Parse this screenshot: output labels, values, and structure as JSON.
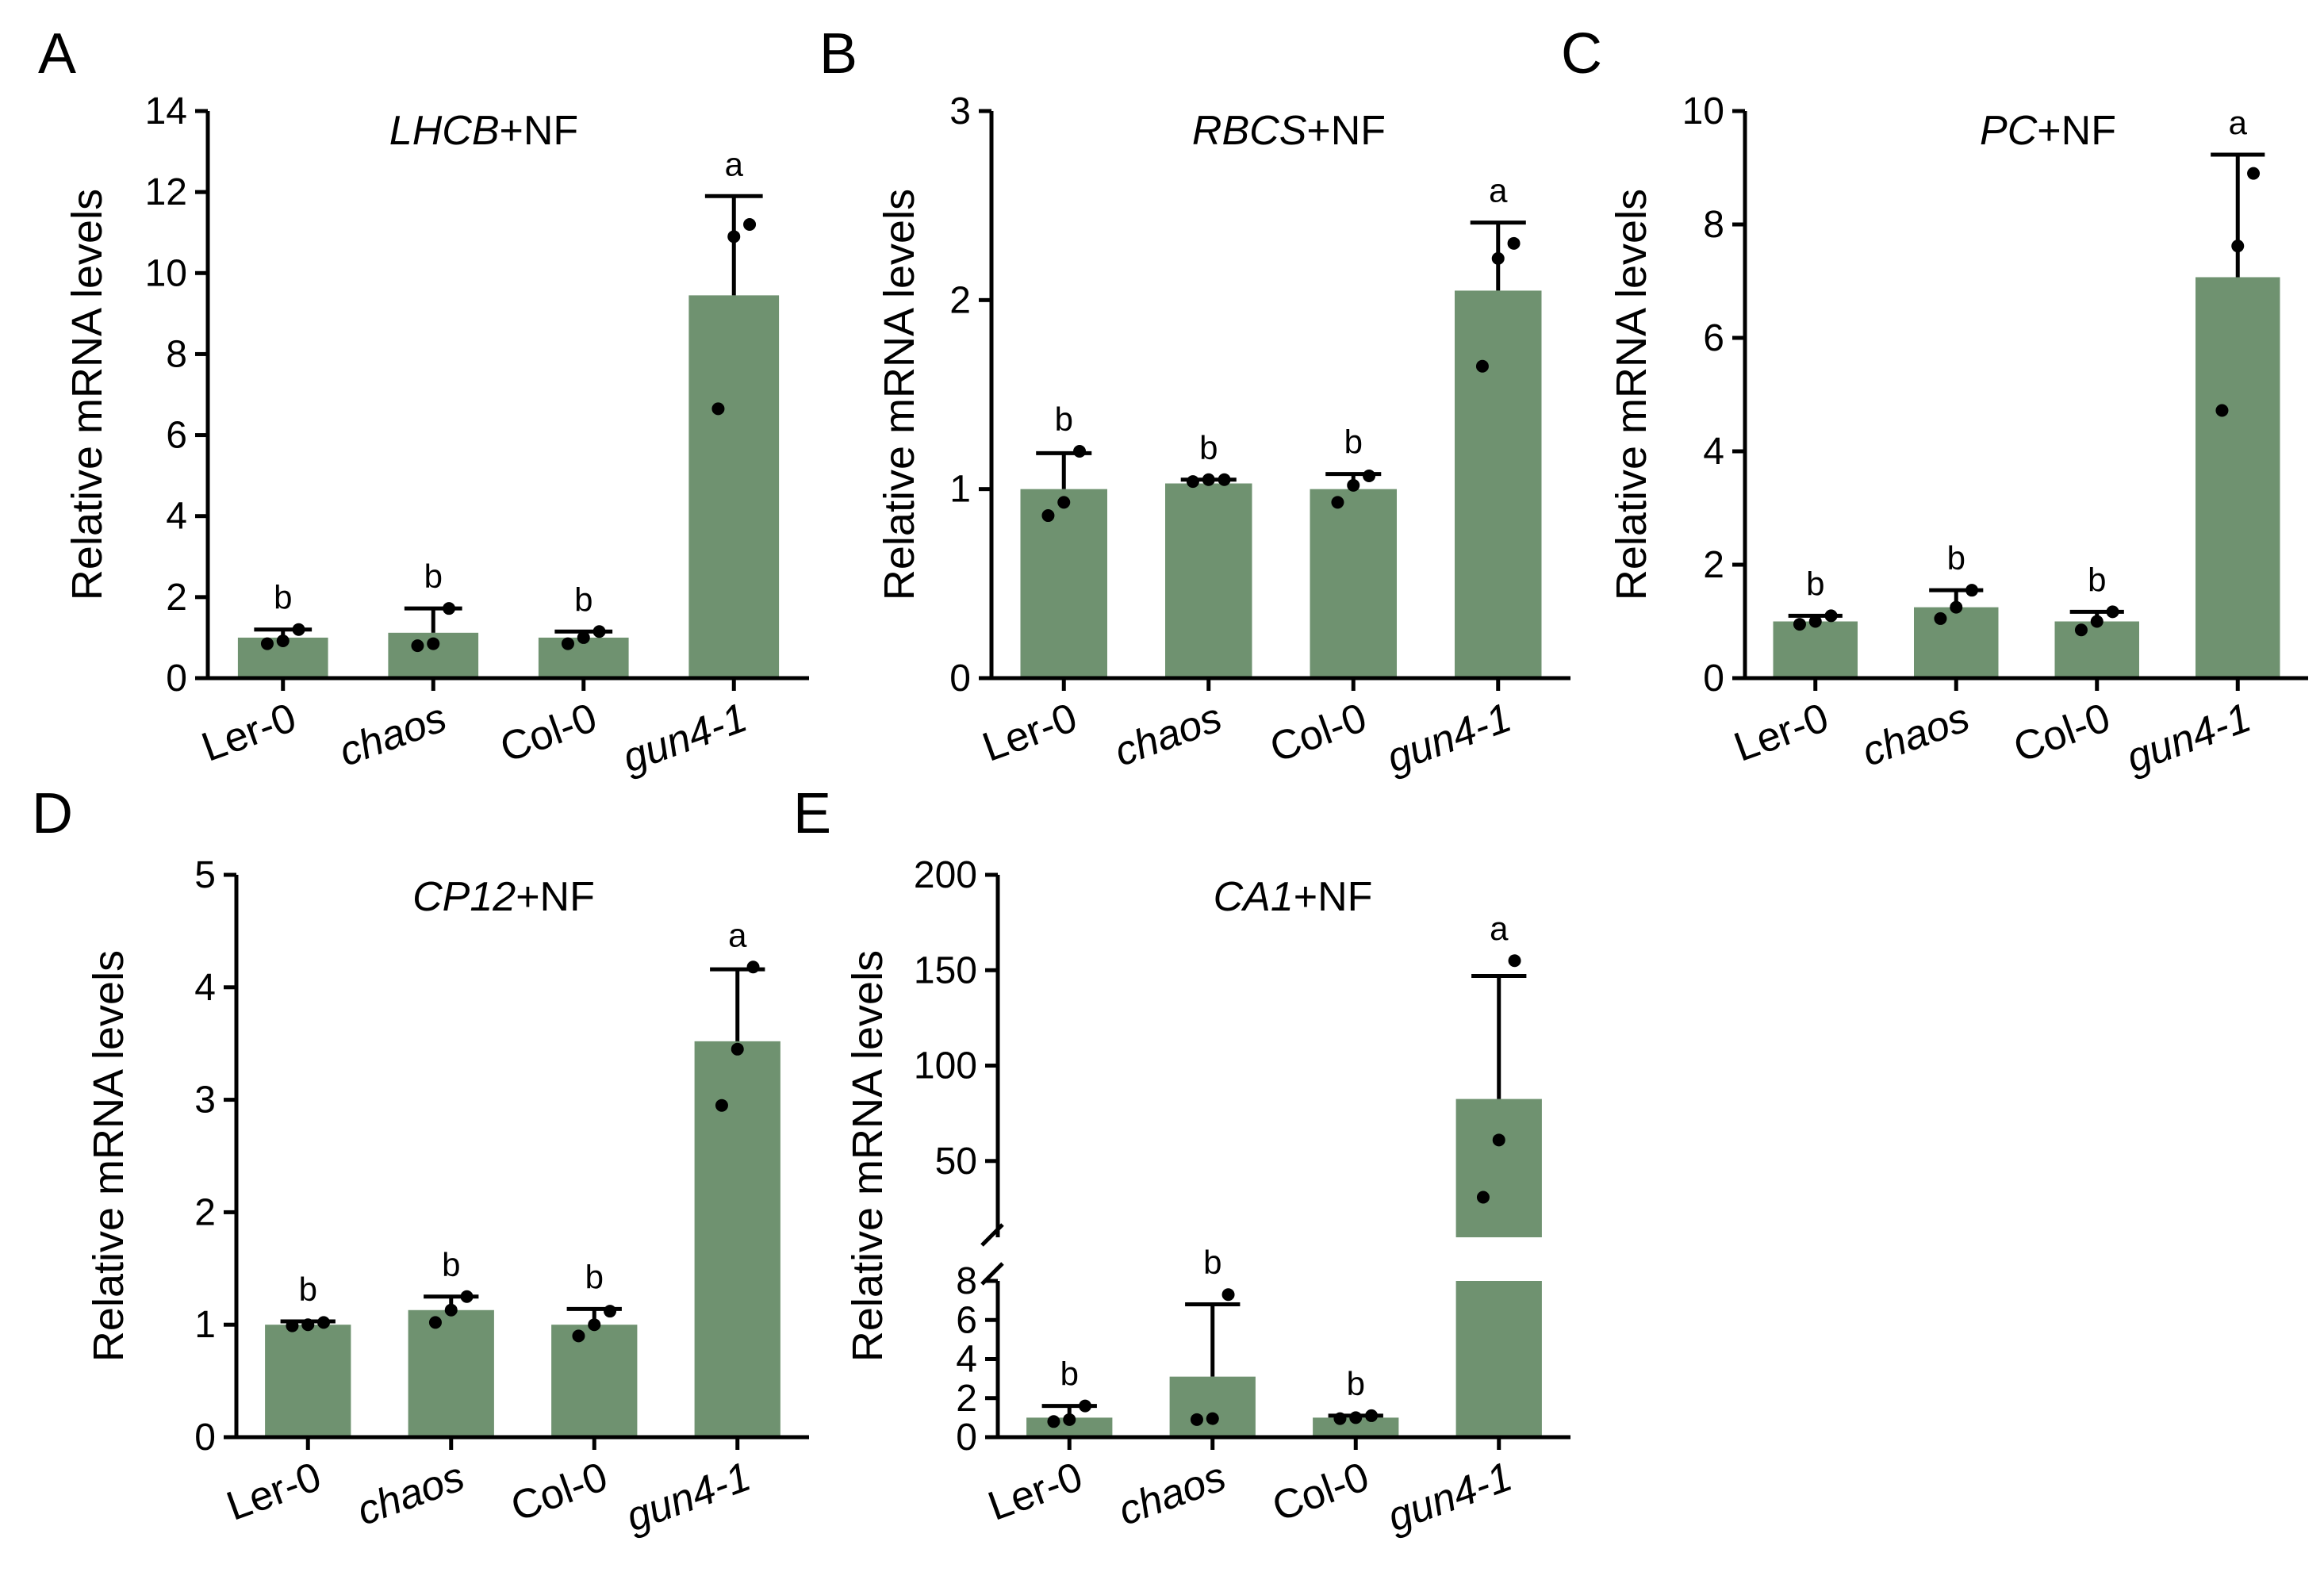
{
  "figure": {
    "bar_color": "#6f9270",
    "line_color": "#000000",
    "background": "#ffffff"
  },
  "chart_data": [
    {
      "panel": "A",
      "type": "bar",
      "title_italic": "LHCB",
      "title_rest": "+NF",
      "ylabel": "Relative mRNA levels",
      "categories": [
        "Ler-0",
        "chaos",
        "Col-0",
        "gun4-1"
      ],
      "italic_categories": [
        false,
        true,
        false,
        true
      ],
      "ylim": [
        0,
        14
      ],
      "yticks": [
        0,
        2,
        4,
        6,
        8,
        10,
        12,
        14
      ],
      "values": [
        1.0,
        1.12,
        1.0,
        9.45
      ],
      "error_upper": [
        1.2,
        1.72,
        1.15,
        11.9
      ],
      "points": [
        [
          0.85,
          0.92,
          1.2
        ],
        [
          0.8,
          0.85,
          1.72
        ],
        [
          0.85,
          1.0,
          1.15
        ],
        [
          6.65,
          10.9,
          11.2
        ]
      ],
      "significance": [
        "b",
        "b",
        "b",
        "a"
      ]
    },
    {
      "panel": "B",
      "type": "bar",
      "title_italic": "RBCS",
      "title_rest": "+NF",
      "ylabel": "Relative mRNA levels",
      "categories": [
        "Ler-0",
        "chaos",
        "Col-0",
        "gun4-1"
      ],
      "italic_categories": [
        false,
        true,
        false,
        true
      ],
      "ylim": [
        0,
        3
      ],
      "yticks": [
        0,
        1,
        2,
        3
      ],
      "values": [
        1.0,
        1.03,
        1.0,
        2.05
      ],
      "error_upper": [
        1.19,
        1.05,
        1.08,
        2.41
      ],
      "points": [
        [
          0.86,
          0.93,
          1.2
        ],
        [
          1.04,
          1.05,
          1.05
        ],
        [
          0.93,
          1.02,
          1.07
        ],
        [
          1.65,
          2.22,
          2.3
        ]
      ],
      "significance": [
        "b",
        "b",
        "b",
        "a"
      ]
    },
    {
      "panel": "C",
      "type": "bar",
      "title_italic": "PC",
      "title_rest": "+NF",
      "ylabel": "Relative mRNA levels",
      "categories": [
        "Ler-0",
        "chaos",
        "Col-0",
        "gun4-1"
      ],
      "italic_categories": [
        false,
        true,
        false,
        true
      ],
      "ylim": [
        0,
        10
      ],
      "yticks": [
        0,
        2,
        4,
        6,
        8,
        10
      ],
      "values": [
        1.0,
        1.25,
        1.0,
        7.07
      ],
      "error_upper": [
        1.1,
        1.55,
        1.17,
        9.23
      ],
      "points": [
        [
          0.95,
          1.0,
          1.1
        ],
        [
          1.05,
          1.25,
          1.55
        ],
        [
          0.85,
          1.0,
          1.17
        ],
        [
          4.72,
          7.62,
          8.9
        ]
      ],
      "significance": [
        "b",
        "b",
        "b",
        "a"
      ]
    },
    {
      "panel": "D",
      "type": "bar",
      "title_italic": "CP12",
      "title_rest": "+NF",
      "ylabel": "Relative mRNA levels",
      "categories": [
        "Ler-0",
        "chaos",
        "Col-0",
        "gun4-1"
      ],
      "italic_categories": [
        false,
        true,
        false,
        true
      ],
      "ylim": [
        0,
        5
      ],
      "yticks": [
        0,
        1,
        2,
        3,
        4,
        5
      ],
      "values": [
        1.0,
        1.13,
        1.0,
        3.52
      ],
      "error_upper": [
        1.03,
        1.25,
        1.14,
        4.16
      ],
      "points": [
        [
          0.99,
          1.0,
          1.02
        ],
        [
          1.02,
          1.13,
          1.25
        ],
        [
          0.9,
          1.0,
          1.12
        ],
        [
          2.95,
          3.45,
          4.18
        ]
      ],
      "significance": [
        "b",
        "b",
        "b",
        "a"
      ]
    },
    {
      "panel": "E",
      "type": "bar",
      "broken_axis": true,
      "title_italic": "CA1",
      "title_rest": "+NF",
      "ylabel": "Relative mRNA levels",
      "categories": [
        "Ler-0",
        "chaos",
        "Col-0",
        "gun4-1"
      ],
      "italic_categories": [
        false,
        true,
        false,
        true
      ],
      "lower_segment": {
        "ylim": [
          0,
          8
        ],
        "yticks": [
          0,
          2,
          4,
          6,
          8
        ]
      },
      "upper_segment": {
        "ylim": [
          10,
          200
        ],
        "yticks": [
          50,
          100,
          150,
          200
        ]
      },
      "values": [
        1.0,
        3.1,
        1.0,
        82.5
      ],
      "error_upper": [
        1.6,
        6.8,
        1.1,
        147
      ],
      "points": [
        [
          0.8,
          0.9,
          1.6
        ],
        [
          0.9,
          0.95,
          7.3
        ],
        [
          0.95,
          1.0,
          1.1
        ],
        [
          31,
          61,
          155
        ]
      ],
      "significance": [
        "b",
        "b",
        "b",
        "a"
      ]
    }
  ]
}
